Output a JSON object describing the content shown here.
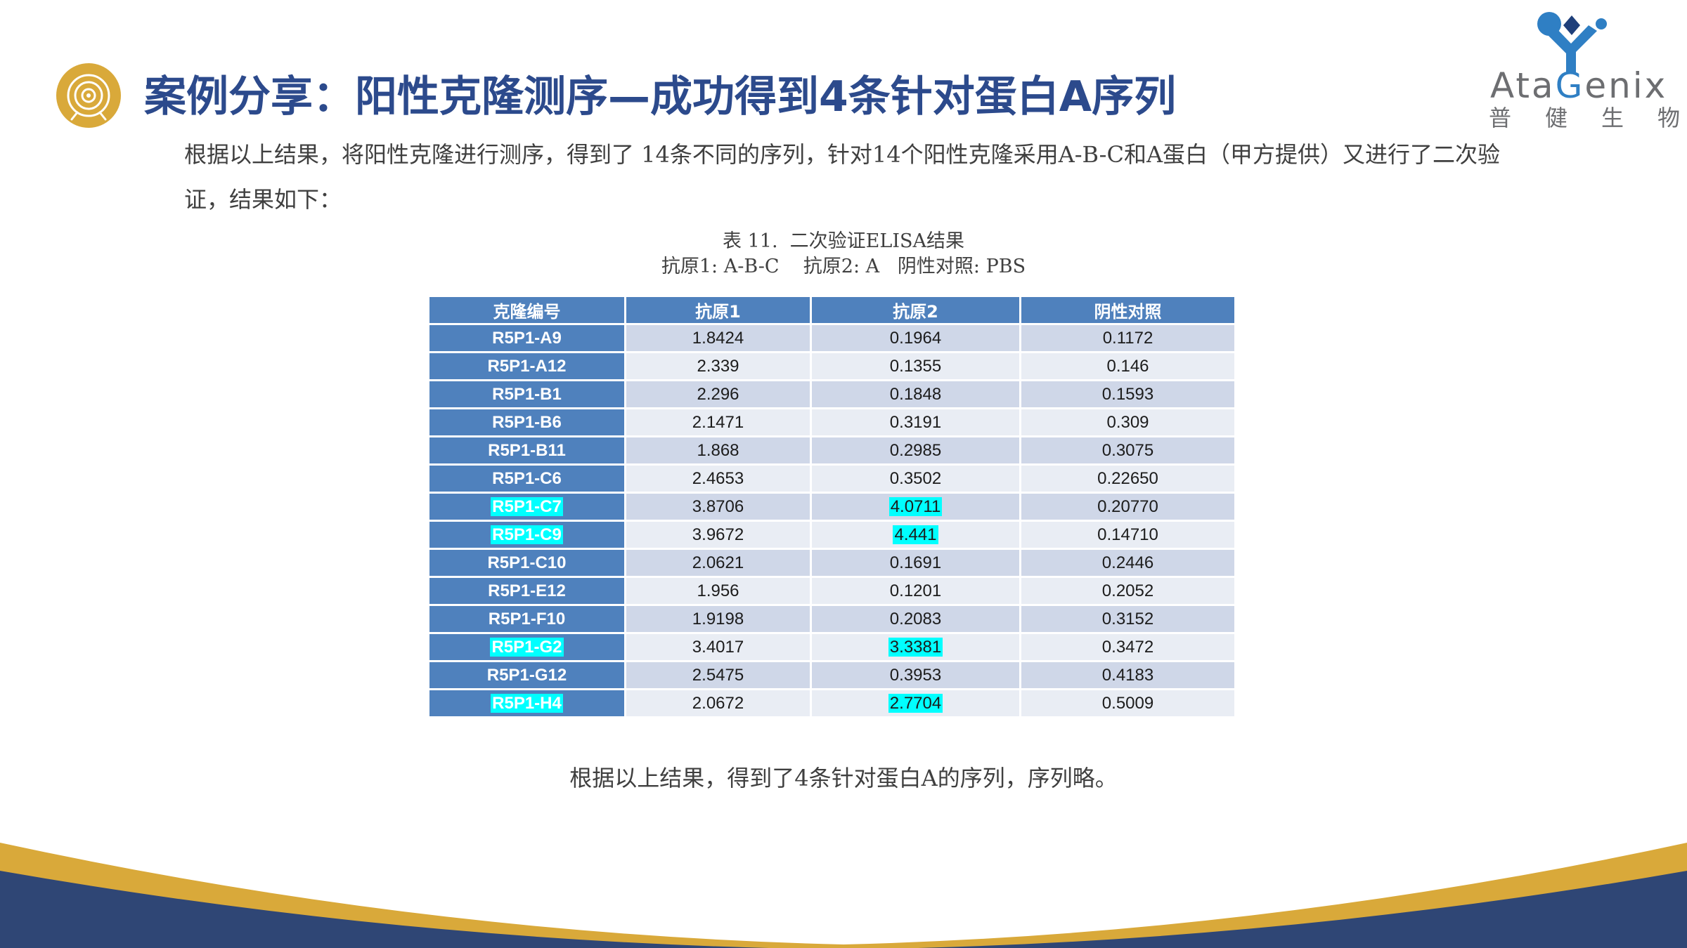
{
  "title": "案例分享：阳性克隆测序—成功得到4条针对蛋白A序列",
  "logo": {
    "name_before": "Ata",
    "name_accent": "G",
    "name_after": "enix",
    "chinese": [
      "普",
      "健",
      "生",
      "物"
    ]
  },
  "intro": "根据以上结果，将阳性克隆进行测序，得到了 14条不同的序列，针对14个阳性克隆采用A-B-C和A蛋白（甲方提供）又进行了二次验证，结果如下：",
  "table": {
    "caption_title": "表 11.  二次验证ELISA结果",
    "caption_sub": "抗原1: A-B-C    抗原2: A   阴性对照: PBS",
    "headers": [
      "克隆编号",
      "抗原1",
      "抗原2",
      "阴性对照"
    ],
    "rows": [
      [
        "R5P1-A9",
        "1.8424",
        "0.1964",
        "0.1172"
      ],
      [
        "R5P1-A12",
        "2.339",
        "0.1355",
        "0.146"
      ],
      [
        "R5P1-B1",
        "2.296",
        "0.1848",
        "0.1593"
      ],
      [
        "R5P1-B6",
        "2.1471",
        "0.3191",
        "0.309"
      ],
      [
        "R5P1-B11",
        "1.868",
        "0.2985",
        "0.3075"
      ],
      [
        "R5P1-C6",
        "2.4653",
        "0.3502",
        "0.22650"
      ],
      [
        "R5P1-C7",
        "3.8706",
        "4.0711",
        "0.20770"
      ],
      [
        "R5P1-C9",
        "3.9672",
        "4.441",
        "0.14710"
      ],
      [
        "R5P1-C10",
        "2.0621",
        "0.1691",
        "0.2446"
      ],
      [
        "R5P1-E12",
        "1.956",
        "0.1201",
        "0.2052"
      ],
      [
        "R5P1-F10",
        "1.9198",
        "0.2083",
        "0.3152"
      ],
      [
        "R5P1-G2",
        "3.4017",
        "3.3381",
        "0.3472"
      ],
      [
        "R5P1-G12",
        "2.5475",
        "0.3953",
        "0.4183"
      ],
      [
        "R5P1-H4",
        "2.0672",
        "2.7704",
        "0.5009"
      ]
    ],
    "highlighted_rows": [
      6,
      7,
      11,
      13
    ],
    "colors": {
      "header": "#4f81bd",
      "row_odd": "#cfd7e8",
      "row_even": "#e9edf4",
      "highlight": "#00ffff"
    }
  },
  "conclusion": "根据以上结果，得到了4条针对蛋白A的序列，序列略。",
  "colors": {
    "title": "#2c4a8c",
    "accent_gold": "#d9a93a",
    "footer_navy": "#2f4675"
  }
}
